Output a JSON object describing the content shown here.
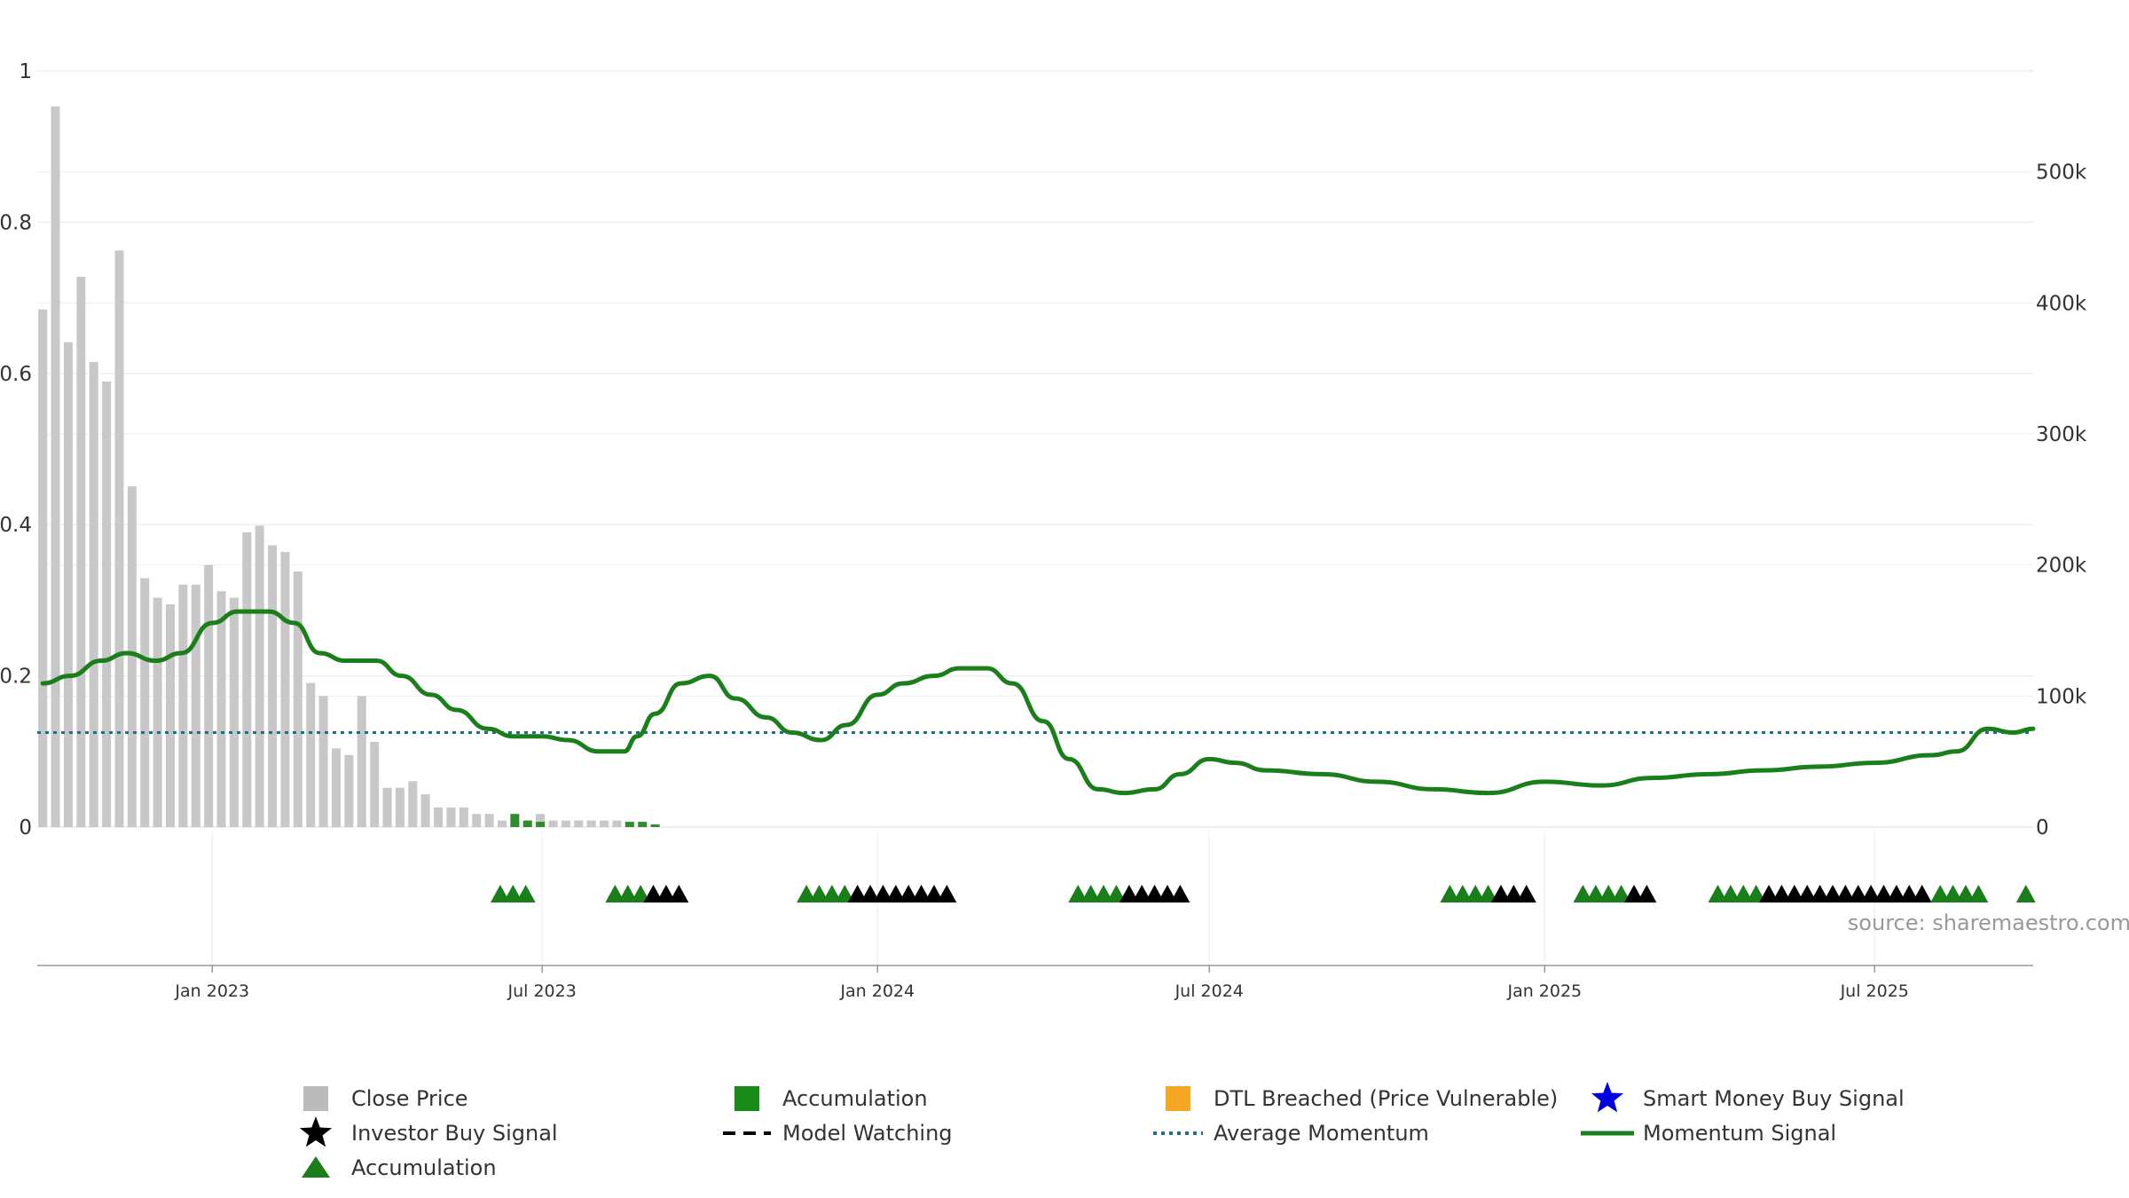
{
  "chart_data": {
    "type": "bar",
    "source": "source: sharemaestro.com",
    "x_range": [
      "2022-09-27",
      "2025-09-26"
    ],
    "y_left": {
      "range": [
        0,
        1
      ],
      "ticks": [
        0,
        0.2,
        0.4,
        0.6,
        0.8,
        1
      ],
      "tick_labels": [
        "0",
        "0.2",
        "0.4",
        "0.6",
        "0.8",
        "1"
      ]
    },
    "y_right": {
      "range": [
        0,
        577000
      ],
      "ticks": [
        0,
        100000,
        200000,
        300000,
        400000,
        500000
      ],
      "tick_labels": [
        "0",
        "100k",
        "200k",
        "300k",
        "400k",
        "500k"
      ]
    },
    "x_ticks": [
      {
        "date": "2023-01-01",
        "label": "Jan 2023"
      },
      {
        "date": "2023-07-01",
        "label": "Jul 2023"
      },
      {
        "date": "2024-01-01",
        "label": "Jan 2024"
      },
      {
        "date": "2024-07-01",
        "label": "Jul 2024"
      },
      {
        "date": "2025-01-01",
        "label": "Jan 2025"
      },
      {
        "date": "2025-07-01",
        "label": "Jul 2025"
      }
    ],
    "grid": true,
    "legend_position": "bottom",
    "colors": {
      "close_price": "#c8c8c8",
      "accumulation_bar": "#2e8b2e",
      "momentum": "#1a7f1a",
      "average_momentum": "#1f6f8b",
      "dtl": "#f5a623",
      "smart_money": "#0000dd",
      "investor_star": "#000000",
      "accumulation_triangle": "#1a7f1a",
      "watching_triangle": "#000000"
    },
    "average_momentum": 0.125,
    "series": [
      {
        "name": "Close Price",
        "type": "bar",
        "axis": "right",
        "points": [
          [
            "2022-09-30",
            395000
          ],
          [
            "2022-10-07",
            550000
          ],
          [
            "2022-10-14",
            370000
          ],
          [
            "2022-10-21",
            420000
          ],
          [
            "2022-10-28",
            355000
          ],
          [
            "2022-11-04",
            340000
          ],
          [
            "2022-11-11",
            440000
          ],
          [
            "2022-11-18",
            260000
          ],
          [
            "2022-11-25",
            190000
          ],
          [
            "2022-12-02",
            175000
          ],
          [
            "2022-12-09",
            170000
          ],
          [
            "2022-12-16",
            185000
          ],
          [
            "2022-12-23",
            185000
          ],
          [
            "2022-12-30",
            200000
          ],
          [
            "2023-01-06",
            180000
          ],
          [
            "2023-01-13",
            175000
          ],
          [
            "2023-01-20",
            225000
          ],
          [
            "2023-01-27",
            230000
          ],
          [
            "2023-02-03",
            215000
          ],
          [
            "2023-02-10",
            210000
          ],
          [
            "2023-02-17",
            195000
          ],
          [
            "2023-02-24",
            110000
          ],
          [
            "2023-03-03",
            100000
          ],
          [
            "2023-03-10",
            60000
          ],
          [
            "2023-03-17",
            55000
          ],
          [
            "2023-03-24",
            100000
          ],
          [
            "2023-03-31",
            65000
          ],
          [
            "2023-04-07",
            30000
          ],
          [
            "2023-04-14",
            30000
          ],
          [
            "2023-04-21",
            35000
          ],
          [
            "2023-04-28",
            25000
          ],
          [
            "2023-05-05",
            15000
          ],
          [
            "2023-05-12",
            15000
          ],
          [
            "2023-05-19",
            15000
          ],
          [
            "2023-05-26",
            10000
          ],
          [
            "2023-06-02",
            10000
          ],
          [
            "2023-06-09",
            5000
          ],
          [
            "2023-06-30",
            10000
          ],
          [
            "2023-07-07",
            5000
          ],
          [
            "2023-07-14",
            5000
          ],
          [
            "2023-07-21",
            5000
          ],
          [
            "2023-07-28",
            5000
          ],
          [
            "2023-08-04",
            5000
          ],
          [
            "2023-08-11",
            5000
          ]
        ]
      },
      {
        "name": "Accumulation",
        "type": "bar",
        "axis": "right",
        "points": [
          [
            "2023-06-16",
            10000
          ],
          [
            "2023-06-23",
            5000
          ],
          [
            "2023-06-30",
            4000
          ],
          [
            "2023-08-18",
            4000
          ],
          [
            "2023-08-25",
            4000
          ],
          [
            "2023-09-01",
            2000
          ]
        ]
      },
      {
        "name": "Momentum Signal",
        "type": "line",
        "axis": "left",
        "points": [
          [
            "2022-09-30",
            0.19
          ],
          [
            "2022-10-15",
            0.2
          ],
          [
            "2022-11-01",
            0.22
          ],
          [
            "2022-11-15",
            0.23
          ],
          [
            "2022-12-01",
            0.22
          ],
          [
            "2022-12-15",
            0.23
          ],
          [
            "2023-01-01",
            0.27
          ],
          [
            "2023-01-15",
            0.285
          ],
          [
            "2023-02-01",
            0.285
          ],
          [
            "2023-02-15",
            0.27
          ],
          [
            "2023-03-01",
            0.23
          ],
          [
            "2023-03-15",
            0.22
          ],
          [
            "2023-04-01",
            0.22
          ],
          [
            "2023-04-15",
            0.2
          ],
          [
            "2023-05-01",
            0.175
          ],
          [
            "2023-05-15",
            0.155
          ],
          [
            "2023-06-01",
            0.13
          ],
          [
            "2023-06-15",
            0.12
          ],
          [
            "2023-07-01",
            0.12
          ],
          [
            "2023-07-15",
            0.115
          ],
          [
            "2023-08-01",
            0.1
          ],
          [
            "2023-08-15",
            0.1
          ],
          [
            "2023-08-22",
            0.12
          ],
          [
            "2023-09-01",
            0.15
          ],
          [
            "2023-09-15",
            0.19
          ],
          [
            "2023-10-01",
            0.2
          ],
          [
            "2023-10-15",
            0.17
          ],
          [
            "2023-11-01",
            0.145
          ],
          [
            "2023-11-15",
            0.125
          ],
          [
            "2023-12-01",
            0.115
          ],
          [
            "2023-12-15",
            0.135
          ],
          [
            "2024-01-01",
            0.175
          ],
          [
            "2024-01-15",
            0.19
          ],
          [
            "2024-02-01",
            0.2
          ],
          [
            "2024-02-15",
            0.21
          ],
          [
            "2024-03-01",
            0.21
          ],
          [
            "2024-03-15",
            0.19
          ],
          [
            "2024-04-01",
            0.14
          ],
          [
            "2024-04-15",
            0.09
          ],
          [
            "2024-05-01",
            0.05
          ],
          [
            "2024-05-15",
            0.045
          ],
          [
            "2024-06-01",
            0.05
          ],
          [
            "2024-06-15",
            0.07
          ],
          [
            "2024-07-01",
            0.09
          ],
          [
            "2024-07-15",
            0.085
          ],
          [
            "2024-08-01",
            0.075
          ],
          [
            "2024-09-01",
            0.07
          ],
          [
            "2024-10-01",
            0.06
          ],
          [
            "2024-11-01",
            0.05
          ],
          [
            "2024-12-01",
            0.045
          ],
          [
            "2025-01-01",
            0.06
          ],
          [
            "2025-02-01",
            0.055
          ],
          [
            "2025-03-01",
            0.065
          ],
          [
            "2025-04-01",
            0.07
          ],
          [
            "2025-05-01",
            0.075
          ],
          [
            "2025-06-01",
            0.08
          ],
          [
            "2025-07-01",
            0.085
          ],
          [
            "2025-08-01",
            0.095
          ],
          [
            "2025-08-15",
            0.1
          ],
          [
            "2025-09-01",
            0.13
          ],
          [
            "2025-09-15",
            0.125
          ],
          [
            "2025-09-26",
            0.13
          ]
        ]
      }
    ],
    "signal_markers": [
      {
        "type": "accumulation",
        "dates": [
          "2023-06-08",
          "2023-06-15",
          "2023-06-22"
        ]
      },
      {
        "type": "accumulation",
        "dates": [
          "2023-08-10",
          "2023-08-17",
          "2023-08-24"
        ]
      },
      {
        "type": "watching",
        "dates": [
          "2023-08-31",
          "2023-09-07",
          "2023-09-14"
        ]
      },
      {
        "type": "accumulation",
        "dates": [
          "2023-11-23",
          "2023-11-30",
          "2023-12-07",
          "2023-12-14"
        ]
      },
      {
        "type": "watching",
        "dates": [
          "2023-12-21",
          "2023-12-28",
          "2024-01-04",
          "2024-01-11",
          "2024-01-18",
          "2024-01-25",
          "2024-02-01",
          "2024-02-08"
        ]
      },
      {
        "type": "accumulation",
        "dates": [
          "2024-04-20",
          "2024-04-27",
          "2024-05-04",
          "2024-05-11"
        ]
      },
      {
        "type": "watching",
        "dates": [
          "2024-05-18",
          "2024-05-25",
          "2024-06-01",
          "2024-06-08",
          "2024-06-15"
        ]
      },
      {
        "type": "accumulation",
        "dates": [
          "2024-11-10",
          "2024-11-17",
          "2024-11-24",
          "2024-12-01"
        ]
      },
      {
        "type": "watching",
        "dates": [
          "2024-12-08",
          "2024-12-15",
          "2024-12-22"
        ]
      },
      {
        "type": "accumulation",
        "dates": [
          "2025-01-22",
          "2025-01-29",
          "2025-02-05",
          "2025-02-12"
        ]
      },
      {
        "type": "watching",
        "dates": [
          "2025-02-19",
          "2025-02-26"
        ]
      },
      {
        "type": "accumulation",
        "dates": [
          "2025-04-06",
          "2025-04-13",
          "2025-04-20",
          "2025-04-27"
        ]
      },
      {
        "type": "watching",
        "dates": [
          "2025-05-04",
          "2025-05-11",
          "2025-05-18",
          "2025-05-25",
          "2025-06-01",
          "2025-06-08",
          "2025-06-15",
          "2025-06-22",
          "2025-06-29",
          "2025-07-06",
          "2025-07-13",
          "2025-07-20",
          "2025-07-27"
        ]
      },
      {
        "type": "accumulation",
        "dates": [
          "2025-08-06",
          "2025-08-13",
          "2025-08-20",
          "2025-08-27",
          "2025-09-22"
        ]
      }
    ],
    "legend": [
      {
        "label": "Close Price",
        "symbol": "square",
        "color": "#bbbbbb"
      },
      {
        "label": "Accumulation",
        "symbol": "square",
        "color": "#1a8a1a"
      },
      {
        "label": "DTL Breached (Price Vulnerable)",
        "symbol": "square",
        "color": "#f5a623"
      },
      {
        "label": "Smart Money Buy Signal",
        "symbol": "star",
        "color": "#0000dd"
      },
      {
        "label": "Investor Buy Signal",
        "symbol": "star",
        "color": "#000000"
      },
      {
        "label": "Model Watching",
        "symbol": "dash",
        "color": "#000000"
      },
      {
        "label": "Average Momentum",
        "symbol": "dotted",
        "color": "#1f6f8b"
      },
      {
        "label": "Momentum Signal",
        "symbol": "line",
        "color": "#1a7f1a"
      },
      {
        "label": "Accumulation",
        "symbol": "triangle",
        "color": "#1a7f1a"
      }
    ]
  }
}
